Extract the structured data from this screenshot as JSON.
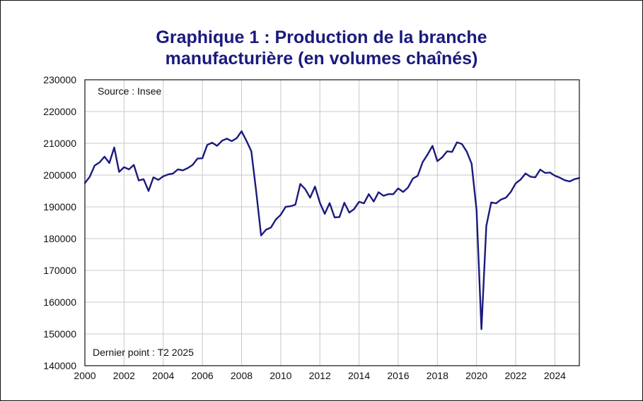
{
  "chart_data": {
    "type": "line",
    "title_line1": "Graphique 1 : Production de la branche",
    "title_line2": "manufacturière (en volumes chaînés)",
    "source_note": "Source : Insee",
    "last_point_note": "Dernier point : T2 2025",
    "xlim": [
      2000,
      2025.25
    ],
    "ylim": [
      140000,
      230000
    ],
    "x_ticks": [
      "2000",
      "2002",
      "2004",
      "2006",
      "2008",
      "2010",
      "2012",
      "2014",
      "2016",
      "2018",
      "2020",
      "2022",
      "2024"
    ],
    "y_ticks": [
      "230000",
      "220000",
      "210000",
      "200000",
      "190000",
      "180000",
      "170000",
      "160000",
      "150000",
      "140000"
    ],
    "series": [
      {
        "color": "#1a1a7e",
        "x": [
          2000,
          2000.25,
          2000.5,
          2000.75,
          2001,
          2001.25,
          2001.5,
          2001.75,
          2002,
          2002.25,
          2002.5,
          2002.75,
          2003,
          2003.25,
          2003.5,
          2003.75,
          2004,
          2004.25,
          2004.5,
          2004.75,
          2005,
          2005.25,
          2005.5,
          2005.75,
          2006,
          2006.25,
          2006.5,
          2006.75,
          2007,
          2007.25,
          2007.5,
          2007.75,
          2008,
          2008.25,
          2008.5,
          2008.75,
          2009,
          2009.25,
          2009.5,
          2009.75,
          2010,
          2010.25,
          2010.5,
          2010.75,
          2011,
          2011.25,
          2011.5,
          2011.75,
          2012,
          2012.25,
          2012.5,
          2012.75,
          2013,
          2013.25,
          2013.5,
          2013.75,
          2014,
          2014.25,
          2014.5,
          2014.75,
          2015,
          2015.25,
          2015.5,
          2015.75,
          2016,
          2016.25,
          2016.5,
          2016.75,
          2017,
          2017.25,
          2017.5,
          2017.75,
          2018,
          2018.25,
          2018.5,
          2018.75,
          2019,
          2019.25,
          2019.5,
          2019.75,
          2020,
          2020.25,
          2020.5,
          2020.75,
          2021,
          2021.25,
          2021.5,
          2021.75,
          2022,
          2022.25,
          2022.5,
          2022.75,
          2023,
          2023.25,
          2023.5,
          2023.75,
          2024,
          2024.25,
          2024.5,
          2024.75,
          2025,
          2025.25
        ],
        "y": [
          197500,
          199500,
          203000,
          204000,
          205800,
          203800,
          208700,
          201000,
          202500,
          201800,
          203200,
          198300,
          198700,
          195000,
          199300,
          198500,
          199600,
          200200,
          200500,
          201800,
          201500,
          202200,
          203200,
          205200,
          205300,
          209500,
          210200,
          209200,
          210800,
          211500,
          210700,
          211600,
          213800,
          210800,
          207500,
          194800,
          181000,
          182800,
          183500,
          186000,
          187500,
          190000,
          190200,
          190700,
          197200,
          195600,
          192900,
          196400,
          191300,
          187800,
          191200,
          186700,
          186800,
          191300,
          188200,
          189300,
          191600,
          191100,
          194000,
          191700,
          194600,
          193500,
          194000,
          194000,
          195800,
          194700,
          196100,
          198900,
          199800,
          204100,
          206500,
          209200,
          204400,
          205600,
          207500,
          207300,
          210300,
          209800,
          207400,
          203600,
          189000,
          151500,
          184000,
          191400,
          191100,
          192300,
          192900,
          194700,
          197400,
          198600,
          200500,
          199500,
          199300,
          201700,
          200700,
          200800,
          199800,
          199200,
          198400,
          198000,
          198700,
          199100
        ]
      }
    ]
  }
}
